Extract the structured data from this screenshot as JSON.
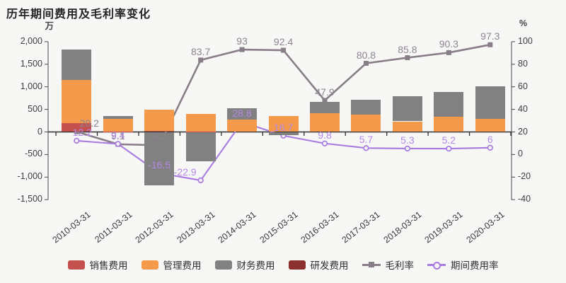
{
  "title": "历年期间费用及毛利率变化",
  "chart_data": {
    "type": "bar",
    "subtype": "stacked-bars-with-two-percent-lines",
    "categories": [
      "2010-03-31",
      "2011-03-31",
      "2012-03-31",
      "2013-03-31",
      "2014-03-31",
      "2015-03-31",
      "2016-03-31",
      "2017-03-31",
      "2018-03-31",
      "2019-03-31",
      "2020-03-31"
    ],
    "bar_series": [
      {
        "name": "销售费用",
        "color": "#c4514e",
        "axis": "left",
        "values": [
          190,
          15,
          30,
          10,
          0,
          0,
          0,
          0,
          0,
          0,
          0
        ]
      },
      {
        "name": "管理费用",
        "color": "#f59a4b",
        "axis": "left",
        "values": [
          960,
          280,
          460,
          390,
          270,
          350,
          420,
          390,
          235,
          330,
          290
        ]
      },
      {
        "name": "财务费用",
        "color": "#818181",
        "axis": "left",
        "values": [
          680,
          50,
          -1190,
          -650,
          250,
          -70,
          250,
          325,
          560,
          560,
          720
        ]
      },
      {
        "name": "研发费用",
        "color": "#8b2f2f",
        "axis": "left",
        "values": [
          0,
          0,
          0,
          0,
          0,
          0,
          0,
          0,
          0,
          0,
          0
        ]
      }
    ],
    "line_series": [
      {
        "name": "毛利率",
        "color": "#887e88",
        "label_color": "#8d8391",
        "marker": "square",
        "axis": "right",
        "values": [
          20.2,
          9.1,
          8.2,
          83.7,
          93,
          92.4,
          47.9,
          80.8,
          85.8,
          90.3,
          97.3
        ],
        "labels": [
          "20.2",
          "9.1",
          "8.2",
          "83.7",
          "93",
          "92.4",
          "47.9",
          "80.8",
          "85.8",
          "90.3",
          "97.3"
        ],
        "label_offsets": {
          "0": [
            18,
            0
          ]
        }
      },
      {
        "name": "期间费用率",
        "color": "#a97be0",
        "label_color": "#b388e6",
        "marker": "circle",
        "axis": "right",
        "values": [
          12.2,
          9.4,
          -16.5,
          -22.9,
          28.8,
          16.7,
          9.8,
          5.7,
          5.3,
          5.2,
          6
        ],
        "labels": [
          "12.2",
          "9.4",
          "-16.5",
          "-22.9",
          "28.8",
          "16.7",
          "9.8",
          "5.7",
          "5.3",
          "5.2",
          "6"
        ],
        "label_offsets": {
          "0": [
            8,
            0
          ],
          "3": [
            -22,
            0
          ]
        }
      }
    ],
    "left_axis": {
      "unit": "万",
      "ticks": [
        2000,
        1500,
        1000,
        500,
        0,
        -500,
        -1000,
        -1500
      ],
      "tick_labels": [
        "2,000",
        "1,500",
        "1,000",
        "500",
        "0",
        "-500",
        "-1,000",
        "-1,500"
      ],
      "range": [
        -1500,
        2000
      ]
    },
    "right_axis": {
      "unit": "%",
      "ticks": [
        100,
        80,
        60,
        40,
        20,
        0,
        -20,
        -40
      ],
      "tick_labels": [
        "100",
        "80",
        "60",
        "40",
        "20",
        "0",
        "-20",
        "-40"
      ],
      "range": [
        -40,
        100
      ]
    },
    "grid": false,
    "legend_position": "bottom",
    "background": "#f7f7f6"
  }
}
